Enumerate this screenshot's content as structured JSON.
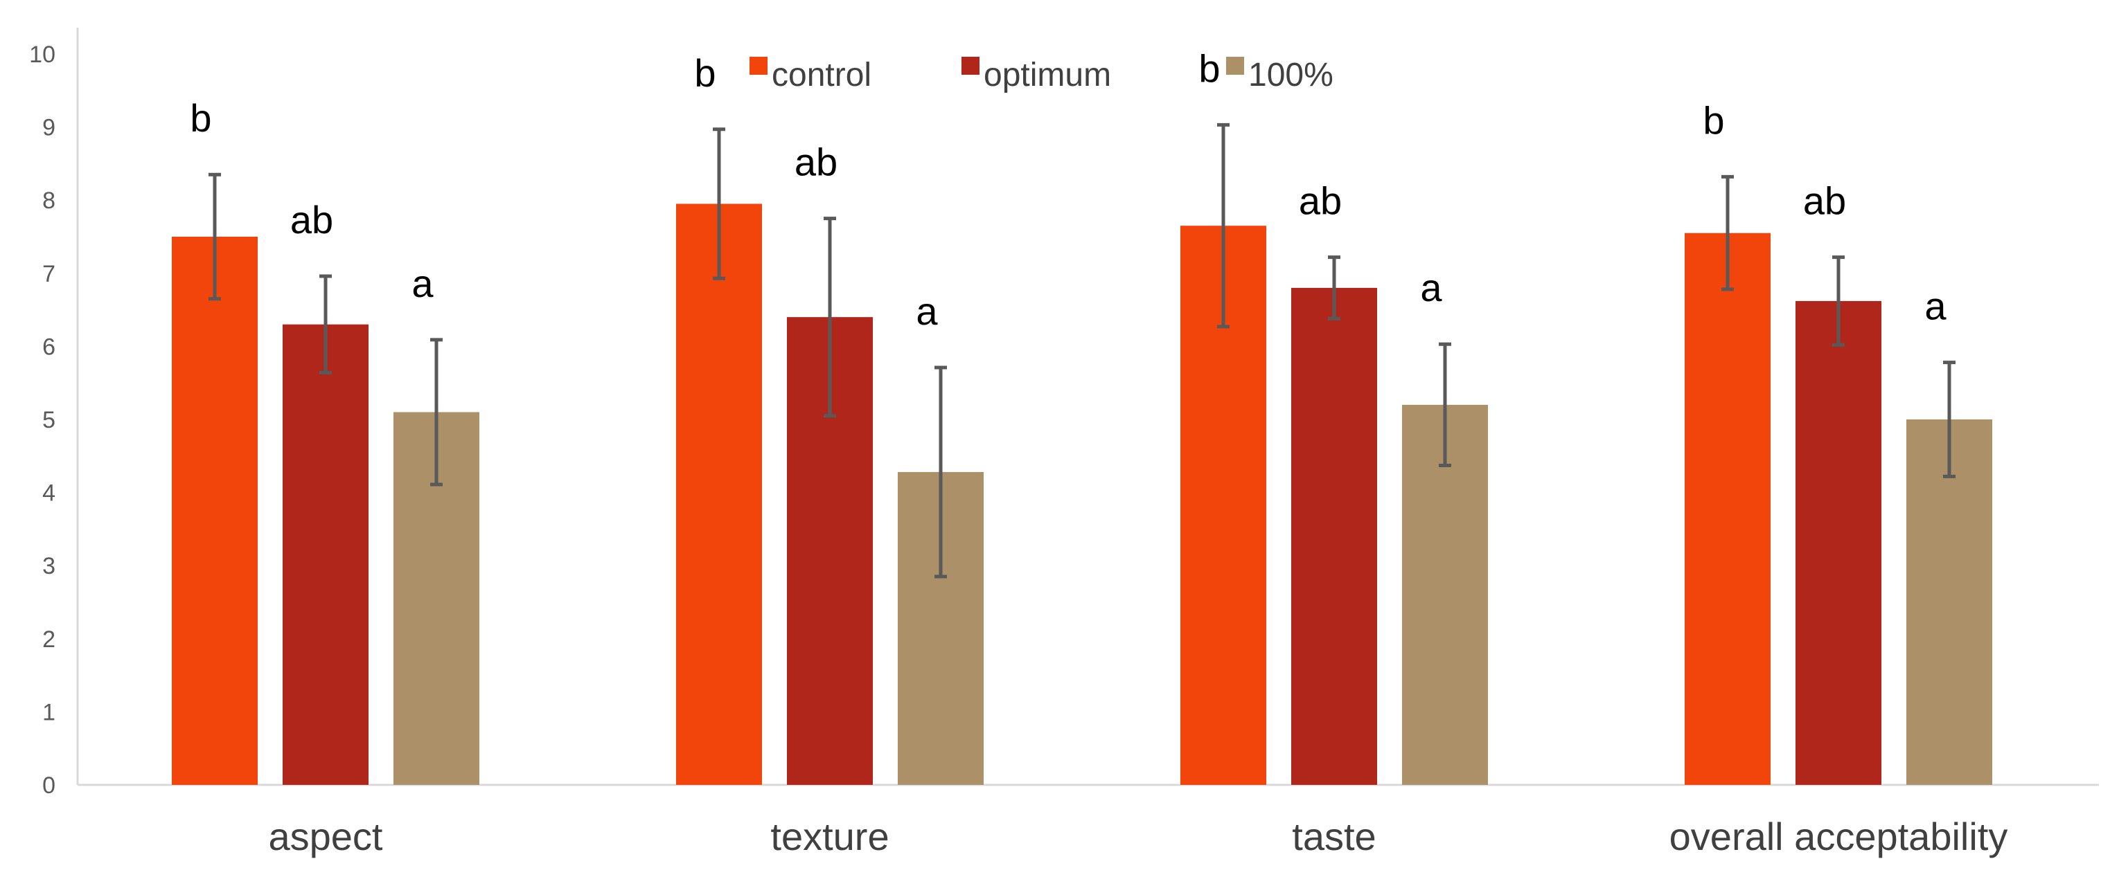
{
  "chart_data": {
    "type": "bar",
    "title": "",
    "xlabel": "",
    "ylabel": "",
    "ylim": [
      0,
      10
    ],
    "yticks": [
      0,
      1,
      2,
      3,
      4,
      5,
      6,
      7,
      8,
      9,
      10
    ],
    "grid": false,
    "legend_position": "top-center",
    "categories": [
      "aspect",
      "texture",
      "taste",
      "overall acceptability"
    ],
    "series": [
      {
        "name": "control",
        "color": "#f2450c",
        "values": [
          7.5,
          7.95,
          7.65,
          7.55
        ],
        "errors": [
          0.85,
          1.02,
          1.38,
          0.77
        ],
        "significance": [
          "b",
          "b",
          "b",
          "b"
        ]
      },
      {
        "name": "optimum",
        "color": "#b0261b",
        "values": [
          6.3,
          6.4,
          6.8,
          6.62
        ],
        "errors": [
          0.66,
          1.35,
          0.42,
          0.6
        ],
        "significance": [
          "ab",
          "ab",
          "ab",
          "ab"
        ]
      },
      {
        "name": "100%",
        "color": "#ab9068",
        "values": [
          5.1,
          4.28,
          5.2,
          5.0
        ],
        "errors": [
          0.99,
          1.43,
          0.83,
          0.78
        ],
        "significance": [
          "a",
          "a",
          "a",
          "a"
        ]
      }
    ]
  }
}
